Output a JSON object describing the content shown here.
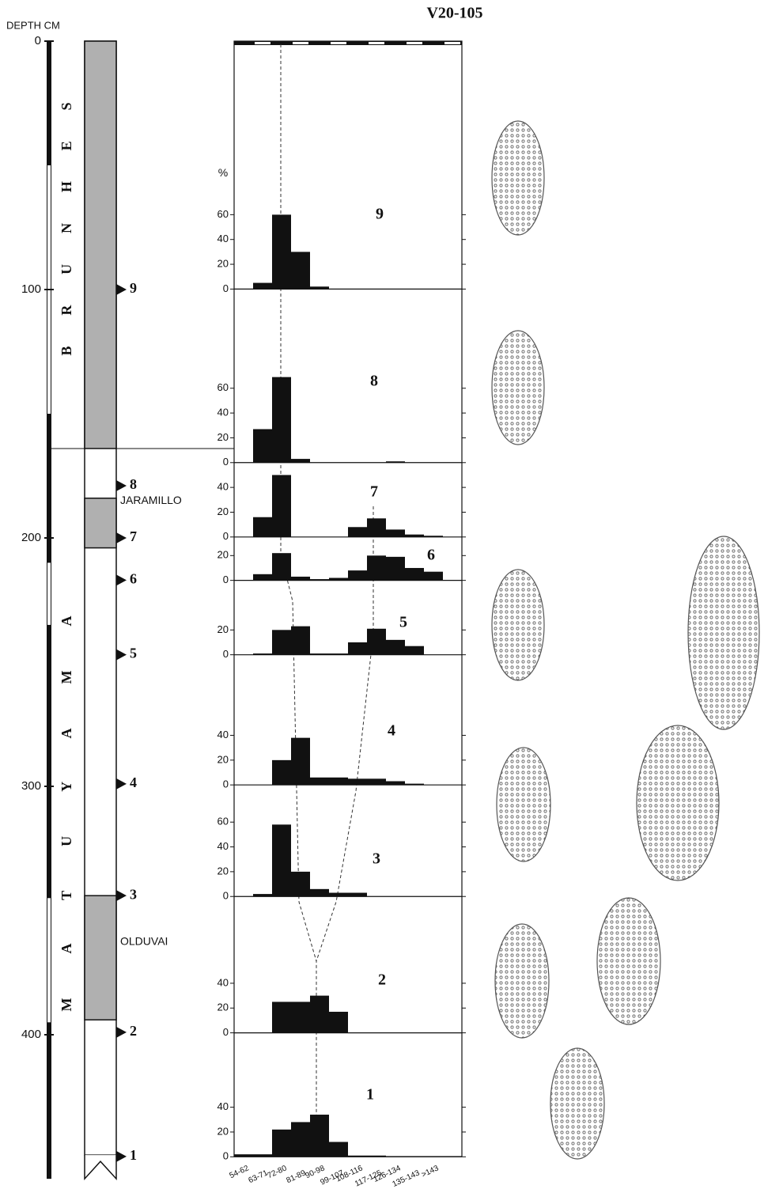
{
  "title": "V20-105",
  "depth_axis": {
    "label": "DEPTH CM",
    "lim": [
      0,
      458
    ],
    "ticks": [
      0,
      100,
      200,
      300,
      400
    ]
  },
  "epochs": [
    {
      "name": "BRUNHES",
      "from": 0,
      "to": 164
    },
    {
      "name": "MATUYAMA",
      "from": 164,
      "to": 458
    }
  ],
  "normal_intervals": [
    {
      "from": 0,
      "to": 164
    },
    {
      "name": "JARAMILLO",
      "from": 184,
      "to": 204
    },
    {
      "name": "OLDUVAI",
      "from": 344,
      "to": 394
    }
  ],
  "samples": [
    {
      "label": "9",
      "depth": 100
    },
    {
      "label": "8",
      "depth": 179
    },
    {
      "label": "7",
      "depth": 200
    },
    {
      "label": "6",
      "depth": 217
    },
    {
      "label": "5",
      "depth": 247
    },
    {
      "label": "4",
      "depth": 299
    },
    {
      "label": "3",
      "depth": 344
    },
    {
      "label": "2",
      "depth": 399
    },
    {
      "label": "1",
      "depth": 449
    }
  ],
  "histograms": {
    "y_label": "%",
    "categories": [
      "54-62",
      "63-71",
      "72-80",
      "81-89",
      "90-98",
      "99-107",
      "108-116",
      "117-125",
      "126-134",
      "135-143",
      ">143"
    ],
    "panels": [
      {
        "label": "9",
        "ylim": [
          0,
          200
        ],
        "yticks": [
          0,
          20,
          40,
          60
        ],
        "values": [
          0,
          5,
          60,
          30,
          2,
          0,
          0,
          0,
          0,
          0,
          0
        ]
      },
      {
        "label": "8",
        "ylim": [
          0,
          140
        ],
        "yticks": [
          0,
          20,
          40,
          60
        ],
        "values": [
          0,
          27,
          69,
          3,
          0,
          0,
          0,
          0,
          1,
          0,
          0
        ]
      },
      {
        "label": "7",
        "ylim": [
          0,
          60
        ],
        "yticks": [
          0,
          20,
          40
        ],
        "values": [
          0,
          16,
          50,
          0,
          0,
          0,
          8,
          15,
          6,
          2,
          1
        ]
      },
      {
        "label": "6",
        "ylim": [
          0,
          35
        ],
        "yticks": [
          0,
          20
        ],
        "values": [
          0,
          5,
          22,
          3,
          1,
          2,
          8,
          20,
          19,
          10,
          7
        ]
      },
      {
        "label": "5",
        "ylim": [
          0,
          60
        ],
        "yticks": [
          0,
          20
        ],
        "values": [
          0,
          1,
          20,
          23,
          1,
          1,
          10,
          21,
          12,
          7,
          0
        ]
      },
      {
        "label": "4",
        "ylim": [
          0,
          105
        ],
        "yticks": [
          0,
          20,
          40
        ],
        "values": [
          0,
          0,
          20,
          38,
          6,
          6,
          5,
          5,
          3,
          1,
          0
        ]
      },
      {
        "label": "3",
        "ylim": [
          0,
          90
        ],
        "yticks": [
          0,
          20,
          40,
          60
        ],
        "values": [
          0,
          2,
          58,
          20,
          6,
          3,
          3,
          0,
          0,
          0,
          0
        ]
      },
      {
        "label": "2",
        "ylim": [
          0,
          110
        ],
        "yticks": [
          0,
          20,
          40
        ],
        "values": [
          0,
          0,
          25,
          25,
          30,
          17,
          0,
          0,
          0,
          0,
          0
        ]
      },
      {
        "label": "1",
        "ylim": [
          0,
          100
        ],
        "yticks": [
          0,
          20,
          40
        ],
        "values": [
          2,
          2,
          22,
          28,
          34,
          12,
          1,
          1,
          0,
          0,
          0
        ]
      }
    ]
  }
}
